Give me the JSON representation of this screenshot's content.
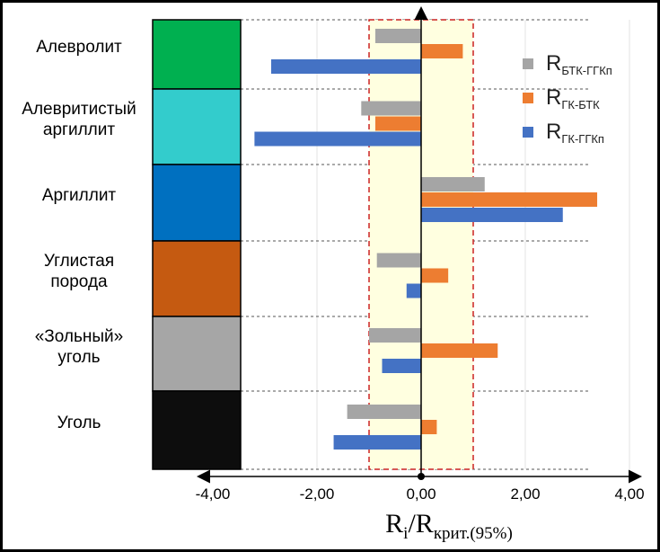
{
  "chart_data": {
    "type": "bar",
    "orientation": "horizontal",
    "categories": [
      "Алевролит",
      "Алевритистый\nаргиллит",
      "Аргиллит",
      "Углистая\nпорода",
      "«Зольный»\nуголь",
      "Уголь"
    ],
    "category_colors": [
      "#00b050",
      "#33cccc",
      "#0070c0",
      "#c55a11",
      "#a6a6a6",
      "#0d0d0d"
    ],
    "series": [
      {
        "name": "R",
        "sub": "БТК-ГГКп",
        "color": "#a5a5a5",
        "values": [
          -0.88,
          -1.15,
          1.22,
          -0.85,
          -1.0,
          -1.42
        ]
      },
      {
        "name": "R",
        "sub": "ГК-БТК",
        "color": "#ed7d31",
        "values": [
          0.8,
          -0.88,
          3.38,
          0.52,
          1.47,
          0.3
        ]
      },
      {
        "name": "R",
        "sub": "ГК-ГГКп",
        "color": "#4472c4",
        "values": [
          -2.88,
          -3.2,
          2.72,
          -0.28,
          -0.75,
          -1.68
        ]
      }
    ],
    "xlim": [
      -4.4,
      4.0
    ],
    "xticks": [
      "-4,00",
      "-2,00",
      "0,00",
      "2,00",
      "4,00"
    ],
    "xtick_values": [
      -4,
      -2,
      0,
      2,
      4
    ],
    "critical_band": [
      -1,
      1
    ],
    "xlabel": {
      "main": "R",
      "sub1": "i",
      "slash": "/R",
      "sub2": "крит.(95%)"
    },
    "legend_position": "top-right",
    "grid": true
  }
}
